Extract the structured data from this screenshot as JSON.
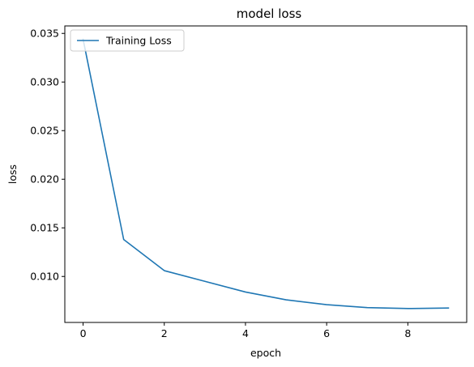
{
  "chart_data": {
    "type": "line",
    "title": "model loss",
    "xlabel": "epoch",
    "ylabel": "loss",
    "xlim": [
      -0.45,
      9.45
    ],
    "ylim": [
      0.00527,
      0.03577
    ],
    "xticks": [
      0,
      2,
      4,
      6,
      8
    ],
    "xtick_labels": [
      "0",
      "2",
      "4",
      "6",
      "8"
    ],
    "yticks": [
      0.01,
      0.015,
      0.02,
      0.025,
      0.03,
      0.035
    ],
    "ytick_labels": [
      "0.010",
      "0.015",
      "0.020",
      "0.025",
      "0.030",
      "0.035"
    ],
    "grid": false,
    "legend_position": "top-left",
    "series": [
      {
        "name": "Training Loss",
        "color": "#1f77b4",
        "x": [
          0,
          1,
          2,
          3,
          4,
          5,
          6,
          7,
          8,
          9
        ],
        "y": [
          0.0344,
          0.0138,
          0.0106,
          0.0095,
          0.0084,
          0.0076,
          0.0071,
          0.0068,
          0.0067,
          0.00675
        ]
      }
    ]
  }
}
